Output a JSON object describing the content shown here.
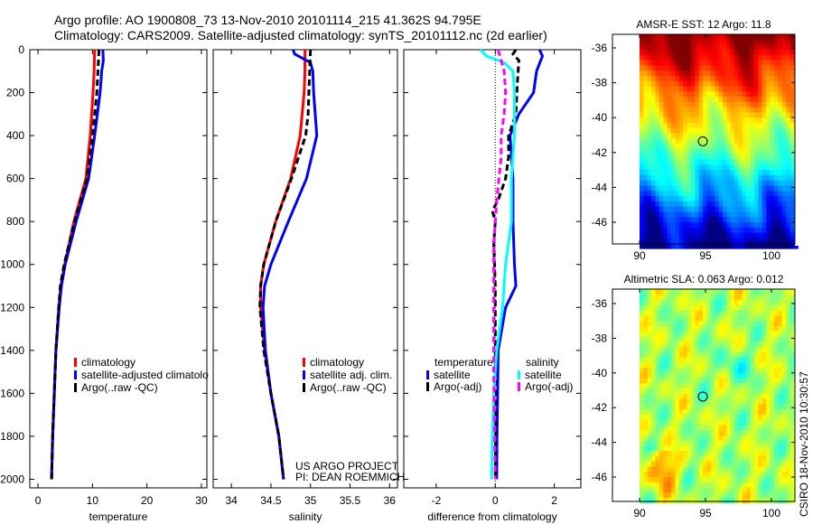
{
  "title_line1": "Argo profile: AO 1900808_73 13-Nov-2010 20101114_215 41.362S 94.795E",
  "title_line2": "Climatology: CARS2009. Satellite-adjusted climatology: synTS_20101112.nc (2d earlier)",
  "credit": "CSIRO 18-Nov-2010 10:30:57",
  "project_line1": "US ARGO PROJECT",
  "project_line2": "PI: DEAN ROEMMICH",
  "colors": {
    "climatology": "#ff0000",
    "satellite": "#0000ff",
    "argo": "#000000",
    "sal_satellite": "#00ffff",
    "sal_argo": "#ff00ff"
  },
  "chart_data": [
    {
      "type": "line",
      "xlabel": "temperature",
      "ylabel": "",
      "xlim": [
        -1.5,
        31
      ],
      "ylim": [
        2040,
        0
      ],
      "xticks": [
        "0",
        "10",
        "20",
        "30"
      ],
      "xtick_values": [
        0,
        10,
        20,
        30
      ],
      "yticks": [
        "0",
        "200",
        "400",
        "600",
        "800",
        "1000",
        "1200",
        "1400",
        "1600",
        "1800",
        "2000"
      ],
      "ytick_values": [
        0,
        200,
        400,
        600,
        800,
        1000,
        1200,
        1400,
        1600,
        1800,
        2000
      ],
      "legend": [
        "climatology",
        "satellite-adjusted climatolo",
        "Argo(..raw -QC)"
      ],
      "series": [
        {
          "name": "climatology",
          "color": "#ff0000",
          "dashed": false,
          "depth": [
            0,
            100,
            200,
            400,
            600,
            800,
            1000,
            1100,
            1200,
            1400,
            1600,
            1800,
            2000
          ],
          "values": [
            10.4,
            10.3,
            10.1,
            9.6,
            8.8,
            6.6,
            4.9,
            4.2,
            3.8,
            3.3,
            3.0,
            2.7,
            2.5
          ]
        },
        {
          "name": "satellite-adjusted climatology",
          "color": "#0000ff",
          "dashed": false,
          "depth": [
            0,
            50,
            100,
            200,
            400,
            600,
            800,
            1000,
            1100,
            1200,
            1400,
            1600,
            1800,
            2000
          ],
          "values": [
            11.9,
            12.0,
            11.7,
            11.4,
            10.4,
            9.3,
            7.0,
            5.0,
            4.3,
            3.9,
            3.3,
            3.0,
            2.7,
            2.5
          ]
        },
        {
          "name": "Argo(..raw -QC)",
          "color": "#000000",
          "dashed": true,
          "depth": [
            0,
            100,
            200,
            400,
            600,
            800,
            1000,
            1100,
            1200,
            1400,
            1600,
            1800,
            2000
          ],
          "values": [
            11.2,
            11.0,
            10.8,
            10.0,
            9.0,
            6.7,
            4.8,
            4.1,
            3.8,
            3.3,
            3.0,
            2.7,
            2.5
          ]
        }
      ]
    },
    {
      "type": "line",
      "xlabel": "salinity",
      "ylabel": "",
      "xlim": [
        33.77,
        36.1
      ],
      "ylim": [
        2040,
        0
      ],
      "xticks": [
        "34",
        "34.5",
        "35",
        "35.5",
        "36"
      ],
      "xtick_values": [
        34,
        34.5,
        35,
        35.5,
        36
      ],
      "legend": [
        "climatology",
        "satellite adj. clim.",
        "Argo(..raw -QC)"
      ],
      "series": [
        {
          "name": "climatology",
          "color": "#ff0000",
          "dashed": false,
          "depth": [
            0,
            100,
            200,
            400,
            600,
            800,
            1000,
            1100,
            1200,
            1400,
            1600,
            1800,
            2000
          ],
          "values": [
            34.93,
            34.93,
            34.92,
            34.87,
            34.75,
            34.56,
            34.41,
            34.37,
            34.37,
            34.42,
            34.5,
            34.6,
            34.66
          ]
        },
        {
          "name": "satellite adj. clim.",
          "color": "#0000ff",
          "dashed": false,
          "depth": [
            0,
            20,
            60,
            100,
            200,
            400,
            600,
            800,
            1000,
            1100,
            1200,
            1400,
            1600,
            1800,
            2000
          ],
          "values": [
            34.78,
            34.8,
            35.0,
            35.03,
            35.04,
            35.08,
            34.95,
            34.72,
            34.5,
            34.42,
            34.4,
            34.43,
            34.5,
            34.6,
            34.66
          ]
        },
        {
          "name": "Argo(..raw -QC)",
          "color": "#000000",
          "dashed": true,
          "depth": [
            0,
            100,
            200,
            300,
            400,
            600,
            800,
            1000,
            1100,
            1200,
            1400,
            1600,
            1800,
            2000
          ],
          "values": [
            35.0,
            34.99,
            34.98,
            34.97,
            34.94,
            34.76,
            34.56,
            34.41,
            34.37,
            34.36,
            34.41,
            34.5,
            34.6,
            34.66
          ]
        }
      ]
    },
    {
      "type": "line",
      "xlabel": "difference from climatology",
      "ylabel": "",
      "xlim": [
        -3.1,
        2.9
      ],
      "ylim": [
        2040,
        0
      ],
      "xticks": [
        "-2",
        "0",
        "2"
      ],
      "xtick_values": [
        -2,
        0,
        2
      ],
      "legend_temperature_title": "temperature",
      "legend_salinity_title": "salinity",
      "legend": [
        "satellite",
        "Argo(-adj)",
        "satellite",
        "Argo(-adj)"
      ],
      "series": [
        {
          "name": "temperature satellite",
          "color": "#0000ff",
          "dashed": false,
          "depth": [
            0,
            30,
            100,
            200,
            300,
            400,
            600,
            800,
            1000,
            1100,
            1200,
            1400,
            1600,
            1800,
            2000
          ],
          "values": [
            1.5,
            1.6,
            1.4,
            1.3,
            0.8,
            0.5,
            0.6,
            0.6,
            0.65,
            0.7,
            0.35,
            0.1,
            0.08,
            0.06,
            0.05
          ]
        },
        {
          "name": "temperature Argo(-adj)",
          "color": "#000000",
          "dashed": true,
          "depth": [
            0,
            20,
            50,
            150,
            300,
            400,
            500,
            600,
            700,
            750,
            800,
            900,
            1100,
            1400,
            1700,
            2000
          ],
          "values": [
            0.7,
            0.6,
            0.8,
            0.75,
            0.7,
            0.45,
            0.45,
            0.35,
            0.1,
            -0.1,
            0.0,
            -0.05,
            0.0,
            0.0,
            0.02,
            0.0
          ]
        },
        {
          "name": "salinity satellite",
          "color": "#00ffff",
          "dashed": false,
          "depth": [
            0,
            30,
            60,
            100,
            200,
            400,
            600,
            800,
            1000,
            1200,
            1400,
            1600,
            1800,
            2000
          ],
          "values": [
            -0.5,
            -0.3,
            0.3,
            0.6,
            0.65,
            0.65,
            0.55,
            0.55,
            0.35,
            0.25,
            0.05,
            -0.05,
            -0.1,
            -0.12
          ]
        },
        {
          "name": "salinity Argo(-adj)",
          "color": "#ff00ff",
          "dashed": true,
          "depth": [
            0,
            100,
            200,
            300,
            400,
            500,
            700,
            800,
            900,
            1200,
            1500,
            1800,
            2000
          ],
          "values": [
            0.1,
            0.3,
            0.35,
            0.3,
            0.2,
            0.2,
            0.05,
            0.0,
            -0.05,
            -0.05,
            -0.05,
            -0.02,
            0.0
          ]
        }
      ]
    },
    {
      "type": "heatmap",
      "title": "AMSR-E SST: 12 Argo: 11.8",
      "xticks": [
        "90",
        "95",
        "100"
      ],
      "xtick_values": [
        90,
        95,
        100
      ],
      "yticks": [
        "-36",
        "-38",
        "-40",
        "-42",
        "-44",
        "-46"
      ],
      "ytick_values": [
        -36,
        -38,
        -40,
        -42,
        -44,
        -46
      ],
      "xlim": [
        88,
        101.8
      ],
      "ylim": [
        -47.25,
        -35.2
      ],
      "data_xlim": [
        90,
        101.8
      ],
      "marker": {
        "lon": 94.795,
        "lat": -41.362
      }
    },
    {
      "type": "heatmap",
      "title": "Altimetric SLA: 0.063 Argo: 0.012",
      "xticks": [
        "90",
        "95",
        "100"
      ],
      "xtick_values": [
        90,
        95,
        100
      ],
      "yticks": [
        "-36",
        "-38",
        "-40",
        "-42",
        "-44",
        "-46"
      ],
      "ytick_values": [
        -36,
        -38,
        -40,
        -42,
        -44,
        -46
      ],
      "xlim": [
        88,
        101.8
      ],
      "ylim": [
        -47.4,
        -35.2
      ],
      "data_xlim": [
        90,
        101.8
      ],
      "marker": {
        "lon": 94.795,
        "lat": -41.362
      }
    }
  ]
}
